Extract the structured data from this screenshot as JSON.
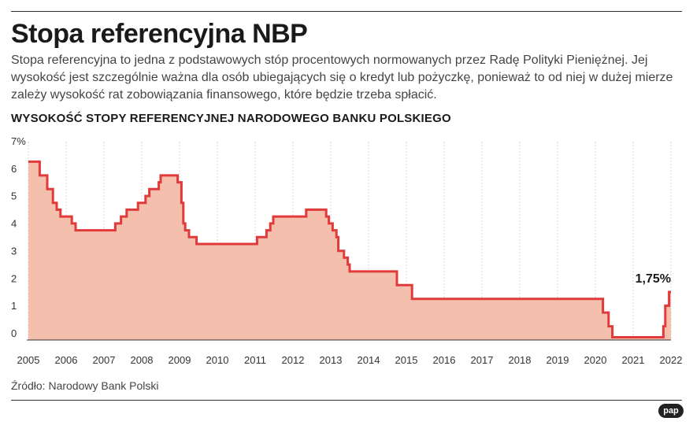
{
  "header": {
    "title": "Stopa referencyjna NBP",
    "description": "Stopa referencyjna to jedna z podstawowych stóp procentowych normowanych przez Radę Polityki Pieniężnej. Jej wysokość jest szczególnie ważna dla osób ubiegających się o kredyt lub pożyczkę, ponieważ to od niej w dużej mierze zależy wysokość rat zobowiązania finansowego, które będzie trzeba spłacić.",
    "subtitle": "WYSOKOŚĆ STOPY REFERENCYJNEJ NARODOWEGO BANKU POLSKIEGO"
  },
  "footer": {
    "source": "Źródło: Narodowy Bank Polski",
    "logo": "pap"
  },
  "chart_data": {
    "type": "area",
    "title": "WYSOKOŚĆ STOPY REFERENCYJNEJ NARODOWEGO BANKU POLSKIEGO",
    "xlabel": "",
    "ylabel": "",
    "xlim": [
      2005,
      2022
    ],
    "ylim": [
      0,
      7
    ],
    "x_ticks": [
      "2005",
      "2006",
      "2007",
      "2008",
      "2009",
      "2010",
      "2011",
      "2012",
      "2013",
      "2014",
      "2015",
      "2016",
      "2017",
      "2018",
      "2019",
      "2020",
      "2021",
      "2022"
    ],
    "y_ticks": [
      "0",
      "1",
      "2",
      "3",
      "4",
      "5",
      "6",
      "7%"
    ],
    "grid": "vertical",
    "colors": {
      "line": "#e03a3a",
      "fill": "#f5bfae",
      "grid": "#d6d6d6"
    },
    "series": [
      {
        "step": "post",
        "points": [
          [
            2005.0,
            6.5
          ],
          [
            2005.3,
            6.0
          ],
          [
            2005.5,
            5.5
          ],
          [
            2005.65,
            5.0
          ],
          [
            2005.75,
            4.75
          ],
          [
            2005.85,
            4.5
          ],
          [
            2006.15,
            4.25
          ],
          [
            2006.25,
            4.0
          ],
          [
            2007.3,
            4.25
          ],
          [
            2007.45,
            4.5
          ],
          [
            2007.6,
            4.75
          ],
          [
            2007.9,
            5.0
          ],
          [
            2008.1,
            5.25
          ],
          [
            2008.2,
            5.5
          ],
          [
            2008.45,
            5.75
          ],
          [
            2008.5,
            6.0
          ],
          [
            2008.95,
            5.75
          ],
          [
            2009.05,
            5.0
          ],
          [
            2009.1,
            4.25
          ],
          [
            2009.15,
            4.0
          ],
          [
            2009.25,
            3.75
          ],
          [
            2009.45,
            3.5
          ],
          [
            2011.05,
            3.75
          ],
          [
            2011.3,
            4.0
          ],
          [
            2011.4,
            4.25
          ],
          [
            2011.48,
            4.5
          ],
          [
            2012.35,
            4.75
          ],
          [
            2012.88,
            4.5
          ],
          [
            2012.95,
            4.25
          ],
          [
            2013.05,
            4.0
          ],
          [
            2013.15,
            3.75
          ],
          [
            2013.2,
            3.25
          ],
          [
            2013.35,
            3.0
          ],
          [
            2013.45,
            2.75
          ],
          [
            2013.5,
            2.5
          ],
          [
            2014.75,
            2.0
          ],
          [
            2015.15,
            1.5
          ],
          [
            2020.2,
            1.0
          ],
          [
            2020.35,
            0.5
          ],
          [
            2020.45,
            0.1
          ],
          [
            2021.8,
            0.5
          ],
          [
            2021.85,
            1.25
          ],
          [
            2021.95,
            1.75
          ],
          [
            2022.0,
            1.75
          ]
        ]
      }
    ],
    "annotations": [
      {
        "text": "1,75%",
        "x": 2022.0,
        "y": 1.75
      }
    ]
  }
}
